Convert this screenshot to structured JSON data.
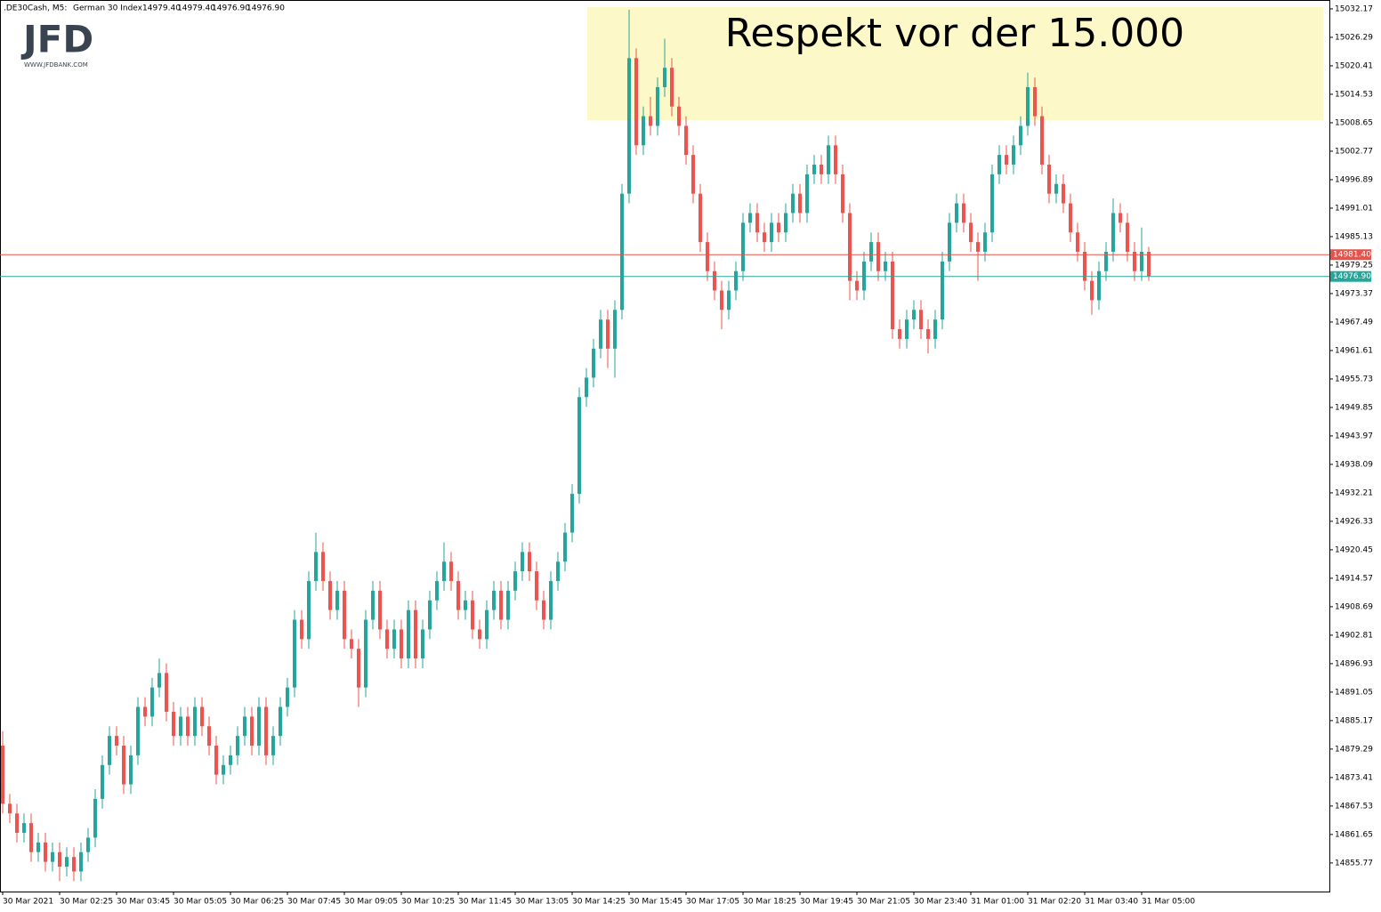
{
  "logo": {
    "text": "JFD",
    "url": "WWW.JFDBANK.COM"
  },
  "chart_data": {
    "type": "candlestick",
    "symbol": ".DE30Cash, M5:",
    "description": "German 30 Index",
    "ohlc_header": [
      {
        "value": 14979.4,
        "label": "14979.40"
      },
      {
        "value": 14979.4,
        "label": "14979.40"
      },
      {
        "value": 14976.9,
        "label": "14976.90"
      },
      {
        "value": 14976.9,
        "label": "14976.90"
      }
    ],
    "annotation": "Respekt vor der 15.000",
    "up_color": "#26a69a",
    "down_color": "#ef5350",
    "grid": false,
    "ylim": [
      14850.6,
      15034.0
    ],
    "yticks": [
      15032.17,
      15026.29,
      15020.41,
      15014.53,
      15008.65,
      15002.77,
      14996.89,
      14991.01,
      14985.13,
      14979.25,
      14973.37,
      14967.49,
      14961.61,
      14955.73,
      14949.85,
      14943.97,
      14938.09,
      14932.21,
      14926.33,
      14920.45,
      14914.57,
      14908.69,
      14902.81,
      14896.93,
      14891.05,
      14885.17,
      14879.29,
      14873.41,
      14867.53,
      14861.65,
      14855.77
    ],
    "price_lines": [
      {
        "value": 14981.4,
        "label": "14981.40",
        "color": "#e5534b"
      },
      {
        "value": 14976.9,
        "label": "14976.90",
        "color": "#26a69a"
      }
    ],
    "categories": [
      "30 Mar 2021",
      null,
      null,
      null,
      null,
      null,
      null,
      null,
      "30 Mar 02:25",
      null,
      null,
      null,
      null,
      null,
      null,
      null,
      "30 Mar 03:45",
      null,
      null,
      null,
      null,
      null,
      null,
      null,
      "30 Mar 05:05",
      null,
      null,
      null,
      null,
      null,
      null,
      null,
      "30 Mar 06:25",
      null,
      null,
      null,
      null,
      null,
      null,
      null,
      "30 Mar 07:45",
      null,
      null,
      null,
      null,
      null,
      null,
      null,
      "30 Mar 09:05",
      null,
      null,
      null,
      null,
      null,
      null,
      null,
      "30 Mar 10:25",
      null,
      null,
      null,
      null,
      null,
      null,
      null,
      "30 Mar 11:45",
      null,
      null,
      null,
      null,
      null,
      null,
      null,
      "30 Mar 13:05",
      null,
      null,
      null,
      null,
      null,
      null,
      null,
      "30 Mar 14:25",
      null,
      null,
      null,
      null,
      null,
      null,
      null,
      "30 Mar 15:45",
      null,
      null,
      null,
      null,
      null,
      null,
      null,
      "30 Mar 17:05",
      null,
      null,
      null,
      null,
      null,
      null,
      null,
      "30 Mar 18:25",
      null,
      null,
      null,
      null,
      null,
      null,
      null,
      "30 Mar 19:45",
      null,
      null,
      null,
      null,
      null,
      null,
      null,
      "30 Mar 21:05",
      null,
      null,
      null,
      null,
      null,
      null,
      null,
      "30 Mar 23:40",
      null,
      null,
      null,
      null,
      null,
      null,
      null,
      "31 Mar 01:00",
      null,
      null,
      null,
      null,
      null,
      null,
      null,
      "31 Mar 02:20",
      null,
      null,
      null,
      null,
      null,
      null,
      null,
      "31 Mar 03:40",
      null,
      null,
      null,
      null,
      null,
      null,
      null,
      "31 Mar 05:00",
      null
    ],
    "candles": [
      [
        14880,
        14883,
        14866,
        14868
      ],
      [
        14868,
        14870,
        14864,
        14866
      ],
      [
        14866,
        14868,
        14860,
        14862
      ],
      [
        14862,
        14866,
        14860,
        14864
      ],
      [
        14864,
        14866,
        14856,
        14858
      ],
      [
        14858,
        14862,
        14856,
        14860
      ],
      [
        14860,
        14862,
        14854,
        14856
      ],
      [
        14856,
        14860,
        14854,
        14858
      ],
      [
        14858,
        14860,
        14852,
        14855
      ],
      [
        14855,
        14859,
        14853,
        14857
      ],
      [
        14857,
        14859,
        14852,
        14854
      ],
      [
        14854,
        14860,
        14852,
        14858
      ],
      [
        14858,
        14863,
        14856,
        14861
      ],
      [
        14861,
        14871,
        14859,
        14869
      ],
      [
        14869,
        14878,
        14867,
        14876
      ],
      [
        14876,
        14884,
        14874,
        14882
      ],
      [
        14882,
        14884,
        14878,
        14880
      ],
      [
        14880,
        14882,
        14870,
        14872
      ],
      [
        14872,
        14880,
        14870,
        14878
      ],
      [
        14878,
        14890,
        14876,
        14888
      ],
      [
        14888,
        14890,
        14884,
        14886
      ],
      [
        14886,
        14894,
        14884,
        14892
      ],
      [
        14892,
        14898,
        14890,
        14895
      ],
      [
        14895,
        14897,
        14885,
        14887
      ],
      [
        14887,
        14889,
        14880,
        14882
      ],
      [
        14882,
        14888,
        14880,
        14886
      ],
      [
        14886,
        14888,
        14880,
        14882
      ],
      [
        14882,
        14890,
        14880,
        14888
      ],
      [
        14888,
        14890,
        14882,
        14884
      ],
      [
        14884,
        14886,
        14878,
        14880
      ],
      [
        14880,
        14882,
        14872,
        14874
      ],
      [
        14874,
        14878,
        14872,
        14876
      ],
      [
        14876,
        14880,
        14874,
        14878
      ],
      [
        14878,
        14884,
        14876,
        14882
      ],
      [
        14882,
        14888,
        14880,
        14886
      ],
      [
        14886,
        14888,
        14878,
        14880
      ],
      [
        14880,
        14890,
        14878,
        14888
      ],
      [
        14888,
        14890,
        14876,
        14878
      ],
      [
        14878,
        14884,
        14876,
        14882
      ],
      [
        14882,
        14890,
        14880,
        14888
      ],
      [
        14888,
        14894,
        14886,
        14892
      ],
      [
        14892,
        14908,
        14890,
        14906
      ],
      [
        14906,
        14908,
        14900,
        14902
      ],
      [
        14902,
        14916,
        14900,
        14914
      ],
      [
        14914,
        14924,
        14912,
        14920
      ],
      [
        14920,
        14922,
        14912,
        14914
      ],
      [
        14914,
        14916,
        14906,
        14908
      ],
      [
        14908,
        14914,
        14906,
        14912
      ],
      [
        14912,
        14914,
        14900,
        14902
      ],
      [
        14902,
        14904,
        14898,
        14900
      ],
      [
        14900,
        14902,
        14888,
        14892
      ],
      [
        14892,
        14908,
        14890,
        14906
      ],
      [
        14906,
        14914,
        14904,
        14912
      ],
      [
        14912,
        14914,
        14902,
        14904
      ],
      [
        14904,
        14906,
        14898,
        14900
      ],
      [
        14900,
        14906,
        14898,
        14904
      ],
      [
        14904,
        14906,
        14896,
        14898
      ],
      [
        14898,
        14910,
        14896,
        14908
      ],
      [
        14908,
        14910,
        14896,
        14898
      ],
      [
        14898,
        14906,
        14896,
        14904
      ],
      [
        14904,
        14912,
        14902,
        14910
      ],
      [
        14910,
        14916,
        14908,
        14914
      ],
      [
        14914,
        14922,
        14912,
        14918
      ],
      [
        14918,
        14920,
        14912,
        14914
      ],
      [
        14914,
        14916,
        14906,
        14908
      ],
      [
        14908,
        14912,
        14906,
        14910
      ],
      [
        14910,
        14912,
        14902,
        14904
      ],
      [
        14904,
        14906,
        14900,
        14902
      ],
      [
        14902,
        14910,
        14900,
        14908
      ],
      [
        14908,
        14914,
        14906,
        14912
      ],
      [
        14912,
        14914,
        14904,
        14906
      ],
      [
        14906,
        14914,
        14904,
        14912
      ],
      [
        14912,
        14918,
        14910,
        14916
      ],
      [
        14916,
        14922,
        14914,
        14920
      ],
      [
        14920,
        14922,
        14914,
        14916
      ],
      [
        14916,
        14918,
        14908,
        14910
      ],
      [
        14910,
        14912,
        14904,
        14906
      ],
      [
        14906,
        14916,
        14904,
        14914
      ],
      [
        14914,
        14920,
        14912,
        14918
      ],
      [
        14918,
        14926,
        14916,
        14924
      ],
      [
        14924,
        14934,
        14922,
        14932
      ],
      [
        14932,
        14954,
        14930,
        14952
      ],
      [
        14952,
        14958,
        14950,
        14956
      ],
      [
        14956,
        14964,
        14954,
        14962
      ],
      [
        14962,
        14970,
        14960,
        14968
      ],
      [
        14968,
        14970,
        14958,
        14962
      ],
      [
        14962,
        14972,
        14956,
        14970
      ],
      [
        14970,
        14996,
        14968,
        14994
      ],
      [
        14994,
        15032,
        14992,
        15022
      ],
      [
        15022,
        15024,
        15002,
        15004
      ],
      [
        15004,
        15012,
        15002,
        15010
      ],
      [
        15010,
        15014,
        15006,
        15008
      ],
      [
        15008,
        15018,
        15006,
        15016
      ],
      [
        15016,
        15026,
        15014,
        15020
      ],
      [
        15020,
        15022,
        15010,
        15012
      ],
      [
        15012,
        15014,
        15006,
        15008
      ],
      [
        15008,
        15010,
        15000,
        15002
      ],
      [
        15002,
        15004,
        14992,
        14994
      ],
      [
        14994,
        14996,
        14982,
        14984
      ],
      [
        14984,
        14986,
        14976,
        14978
      ],
      [
        14978,
        14980,
        14972,
        14974
      ],
      [
        14974,
        14976,
        14966,
        14970
      ],
      [
        14970,
        14976,
        14968,
        14974
      ],
      [
        14974,
        14980,
        14972,
        14978
      ],
      [
        14978,
        14990,
        14976,
        14988
      ],
      [
        14988,
        14992,
        14986,
        14990
      ],
      [
        14990,
        14992,
        14984,
        14986
      ],
      [
        14986,
        14988,
        14982,
        14984
      ],
      [
        14984,
        14990,
        14982,
        14988
      ],
      [
        14988,
        14990,
        14984,
        14986
      ],
      [
        14986,
        14992,
        14984,
        14990
      ],
      [
        14990,
        14996,
        14988,
        14994
      ],
      [
        14994,
        14996,
        14988,
        14990
      ],
      [
        14990,
        15000,
        14988,
        14998
      ],
      [
        14998,
        15002,
        14996,
        15000
      ],
      [
        15000,
        15002,
        14996,
        14998
      ],
      [
        14998,
        15006,
        14996,
        15004
      ],
      [
        15004,
        15006,
        14996,
        14998
      ],
      [
        14998,
        15000,
        14988,
        14990
      ],
      [
        14990,
        14992,
        14972,
        14976
      ],
      [
        14976,
        14978,
        14972,
        14974
      ],
      [
        14974,
        14982,
        14972,
        14980
      ],
      [
        14980,
        14986,
        14978,
        14984
      ],
      [
        14984,
        14986,
        14976,
        14978
      ],
      [
        14978,
        14982,
        14976,
        14980
      ],
      [
        14980,
        14982,
        14964,
        14966
      ],
      [
        14966,
        14968,
        14962,
        14964
      ],
      [
        14964,
        14970,
        14962,
        14968
      ],
      [
        14968,
        14972,
        14966,
        14970
      ],
      [
        14970,
        14972,
        14964,
        14966
      ],
      [
        14966,
        14968,
        14961,
        14964
      ],
      [
        14964,
        14970,
        14962,
        14968
      ],
      [
        14968,
        14982,
        14966,
        14980
      ],
      [
        14980,
        14990,
        14978,
        14988
      ],
      [
        14988,
        14994,
        14986,
        14992
      ],
      [
        14992,
        14994,
        14986,
        14988
      ],
      [
        14988,
        14990,
        14982,
        14984
      ],
      [
        14984,
        14986,
        14976,
        14982
      ],
      [
        14982,
        14988,
        14980,
        14986
      ],
      [
        14986,
        15000,
        14984,
        14998
      ],
      [
        14998,
        15004,
        14996,
        15002
      ],
      [
        15002,
        15004,
        14998,
        15000
      ],
      [
        15000,
        15006,
        14998,
        15004
      ],
      [
        15004,
        15010,
        15002,
        15008
      ],
      [
        15008,
        15019,
        15006,
        15016
      ],
      [
        15016,
        15018,
        15008,
        15010
      ],
      [
        15010,
        15012,
        14998,
        15000
      ],
      [
        15000,
        15002,
        14992,
        14994
      ],
      [
        14994,
        14998,
        14992,
        14996
      ],
      [
        14996,
        14998,
        14990,
        14992
      ],
      [
        14992,
        14994,
        14984,
        14986
      ],
      [
        14986,
        14988,
        14980,
        14982
      ],
      [
        14982,
        14984,
        14974,
        14976
      ],
      [
        14976,
        14978,
        14969,
        14972
      ],
      [
        14972,
        14980,
        14970,
        14978
      ],
      [
        14978,
        14984,
        14976,
        14982
      ],
      [
        14982,
        14993,
        14980,
        14990
      ],
      [
        14990,
        14992,
        14986,
        14988
      ],
      [
        14988,
        14990,
        14980,
        14982
      ],
      [
        14982,
        14984,
        14976,
        14978
      ],
      [
        14978,
        14987,
        14976,
        14982
      ],
      [
        14982,
        14983,
        14976,
        14977
      ]
    ]
  }
}
